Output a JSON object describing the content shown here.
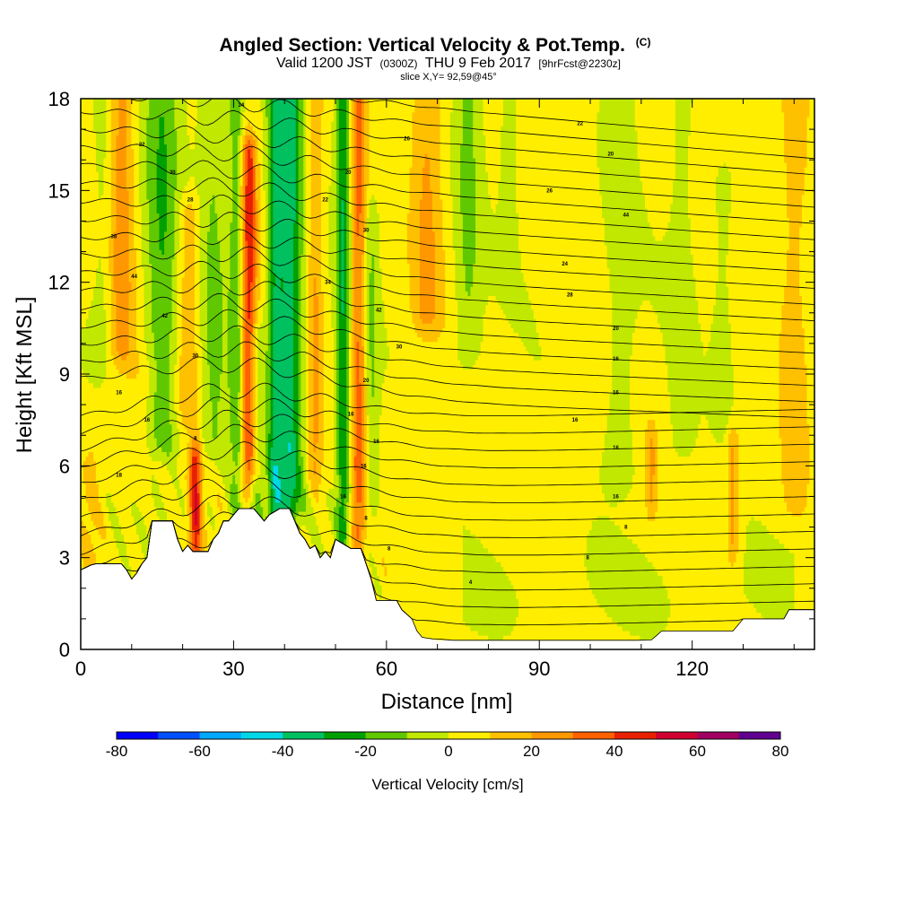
{
  "header": {
    "title": "Angled Section: Vertical Velocity & Pot.Temp.",
    "title_mark": "(C)",
    "valid_prefix": "Valid 1200 JST",
    "valid_utc": "(0300Z)",
    "valid_date": "THU 9 Feb 2017",
    "forecast": "[9hrFcst@2230z]",
    "slice": "slice X,Y= 92,59@45°"
  },
  "chart_data": {
    "type": "heatmap",
    "title": "Angled Section: Vertical Velocity & Pot.Temp.",
    "xlabel": "Distance [nm]",
    "ylabel": "Height [Kft MSL]",
    "xlim": [
      0,
      144
    ],
    "ylim": [
      0,
      18
    ],
    "x_ticks": [
      "0",
      "30",
      "60",
      "90",
      "120"
    ],
    "y_ticks": [
      "0",
      "3",
      "6",
      "9",
      "12",
      "15",
      "18"
    ],
    "colorbar": {
      "label": "Vertical Velocity [cm/s]",
      "range": [
        -80,
        80
      ],
      "tick_labels": [
        "-80",
        "-60",
        "-40",
        "-20",
        "0",
        "20",
        "40",
        "60",
        "80"
      ],
      "colors": [
        "#0000ff",
        "#0050ff",
        "#00a8ff",
        "#00d8e8",
        "#00c060",
        "#00a000",
        "#60c800",
        "#c0e800",
        "#ffee00",
        "#ffc000",
        "#ff9800",
        "#ff6000",
        "#e82000",
        "#d00030",
        "#a00060",
        "#600090"
      ]
    },
    "terrain_profile_kft": [
      [
        0,
        2.6
      ],
      [
        2.5,
        2.8
      ],
      [
        8,
        2.8
      ],
      [
        9,
        2.6
      ],
      [
        10,
        2.3
      ],
      [
        11,
        2.5
      ],
      [
        12,
        2.8
      ],
      [
        13,
        3.0
      ],
      [
        14,
        4.2
      ],
      [
        18,
        4.2
      ],
      [
        19,
        3.6
      ],
      [
        20,
        3.2
      ],
      [
        21,
        3.4
      ],
      [
        22,
        3.2
      ],
      [
        25,
        3.2
      ],
      [
        26,
        3.6
      ],
      [
        27,
        3.8
      ],
      [
        28,
        4.2
      ],
      [
        29,
        4.2
      ],
      [
        31,
        4.6
      ],
      [
        34,
        4.6
      ],
      [
        35,
        4.4
      ],
      [
        36,
        4.2
      ],
      [
        37,
        4.4
      ],
      [
        39,
        4.6
      ],
      [
        41,
        4.6
      ],
      [
        42,
        4.2
      ],
      [
        43,
        3.8
      ],
      [
        44,
        3.6
      ],
      [
        45,
        3.3
      ],
      [
        46,
        3.4
      ],
      [
        47,
        3.0
      ],
      [
        48,
        3.2
      ],
      [
        49,
        3.0
      ],
      [
        50,
        3.6
      ],
      [
        52,
        3.4
      ],
      [
        53,
        3.3
      ],
      [
        55,
        3.3
      ],
      [
        56,
        2.8
      ],
      [
        57,
        2.3
      ],
      [
        58,
        1.6
      ],
      [
        62,
        1.6
      ],
      [
        63,
        1.3
      ],
      [
        65,
        1.0
      ],
      [
        66,
        0.6
      ],
      [
        67,
        0.4
      ],
      [
        70,
        0.3
      ],
      [
        112,
        0.3
      ],
      [
        114,
        0.6
      ],
      [
        128,
        0.6
      ],
      [
        130,
        1.0
      ],
      [
        138,
        1.0
      ],
      [
        139,
        1.3
      ],
      [
        144,
        1.3
      ]
    ],
    "features": [
      {
        "x": 16,
        "w": 3.5,
        "z0": 7,
        "z1": 18,
        "v": -22
      },
      {
        "x": 8,
        "w": 2.5,
        "z0": 10,
        "z1": 18,
        "v": 22
      },
      {
        "x": 4.5,
        "w": 2.2,
        "z0": 10,
        "z1": 18,
        "v": -8
      },
      {
        "x": 21,
        "w": 2.5,
        "z0": 8,
        "z1": 14,
        "v": 18
      },
      {
        "x": 22.5,
        "w": 1.2,
        "z0": 3.5,
        "z1": 6,
        "v": 45
      },
      {
        "x": 26,
        "w": 3,
        "z0": 7,
        "z1": 18,
        "v": -14
      },
      {
        "x": 30.5,
        "w": 1.3,
        "z0": 5,
        "z1": 18,
        "v": -20
      },
      {
        "x": 33,
        "w": 1.5,
        "z0": 6,
        "z1": 16,
        "v": 40
      },
      {
        "x": 34.5,
        "w": 1.3,
        "z0": 4,
        "z1": 10,
        "v": -14
      },
      {
        "x": 38,
        "w": 1.5,
        "z0": 4,
        "z1": 18,
        "v": -28
      },
      {
        "x": 41,
        "w": 2.5,
        "z0": 5,
        "z1": 18,
        "v": -38
      },
      {
        "x": 46,
        "w": 1.5,
        "z0": 6,
        "z1": 18,
        "v": 18
      },
      {
        "x": 51.5,
        "w": 1.4,
        "z0": 4,
        "z1": 18,
        "v": -32
      },
      {
        "x": 54.5,
        "w": 1.6,
        "z0": 4,
        "z1": 18,
        "v": 30
      },
      {
        "x": 57,
        "w": 1.3,
        "z0": 5,
        "z1": 14,
        "v": -14
      },
      {
        "x": 68,
        "w": 3,
        "z0": 11,
        "z1": 18,
        "v": 18
      },
      {
        "x": 76,
        "w": 2.5,
        "z0": 10,
        "z1": 18,
        "v": -14
      },
      {
        "x": 84,
        "w": 1.5,
        "z0": 13,
        "z1": 18,
        "v": -10
      },
      {
        "x": 106,
        "w": 3,
        "z0": 6,
        "z1": 18,
        "v": -8
      },
      {
        "x": 118,
        "w": 2.5,
        "z0": 7,
        "z1": 18,
        "v": -7
      },
      {
        "x": 126,
        "w": 2,
        "z0": 8,
        "z1": 15,
        "v": -8
      },
      {
        "x": 140,
        "w": 3,
        "z0": 5,
        "z1": 18,
        "v": 12
      },
      {
        "x": 128,
        "w": 1.2,
        "z0": 3.5,
        "z1": 6.5,
        "v": 20
      },
      {
        "x": 112,
        "w": 1.2,
        "z0": 5,
        "z1": 6.5,
        "v": 18
      },
      {
        "x": 2,
        "w": 2,
        "z0": 0,
        "z1": 6,
        "v": 10
      },
      {
        "x": 12,
        "w": 3,
        "z0": 6,
        "z1": 9,
        "v": 8
      }
    ],
    "isentropes": {
      "count": 32,
      "labels": [
        {
          "x": 31.5,
          "z": 17.8,
          "text": "34"
        },
        {
          "x": 12,
          "z": 16.5,
          "text": "32"
        },
        {
          "x": 64,
          "z": 16.7,
          "text": "26"
        },
        {
          "x": 98,
          "z": 17.2,
          "text": "22"
        },
        {
          "x": 104,
          "z": 16.2,
          "text": "20"
        },
        {
          "x": 52.5,
          "z": 15.6,
          "text": "20"
        },
        {
          "x": 18,
          "z": 15.6,
          "text": "30"
        },
        {
          "x": 92,
          "z": 15.0,
          "text": "26"
        },
        {
          "x": 21.5,
          "z": 14.7,
          "text": "28"
        },
        {
          "x": 48,
          "z": 14.7,
          "text": "22"
        },
        {
          "x": 107,
          "z": 14.2,
          "text": "44"
        },
        {
          "x": 56,
          "z": 13.7,
          "text": "30"
        },
        {
          "x": 6.5,
          "z": 13.5,
          "text": "38"
        },
        {
          "x": 95,
          "z": 12.6,
          "text": "24"
        },
        {
          "x": 10.5,
          "z": 12.2,
          "text": "44"
        },
        {
          "x": 48.5,
          "z": 12.0,
          "text": "34"
        },
        {
          "x": 96,
          "z": 11.6,
          "text": "28"
        },
        {
          "x": 58.5,
          "z": 11.1,
          "text": "42"
        },
        {
          "x": 16.5,
          "z": 10.9,
          "text": "42"
        },
        {
          "x": 105,
          "z": 10.5,
          "text": "20"
        },
        {
          "x": 62.5,
          "z": 9.9,
          "text": "30"
        },
        {
          "x": 22.5,
          "z": 9.6,
          "text": "30"
        },
        {
          "x": 105,
          "z": 9.5,
          "text": "16"
        },
        {
          "x": 56,
          "z": 8.8,
          "text": "20"
        },
        {
          "x": 105,
          "z": 8.4,
          "text": "16"
        },
        {
          "x": 7.5,
          "z": 8.4,
          "text": "16"
        },
        {
          "x": 53,
          "z": 7.7,
          "text": "16"
        },
        {
          "x": 97,
          "z": 7.5,
          "text": "16"
        },
        {
          "x": 13,
          "z": 7.5,
          "text": "16"
        },
        {
          "x": 22.5,
          "z": 6.9,
          "text": "8"
        },
        {
          "x": 58,
          "z": 6.8,
          "text": "16"
        },
        {
          "x": 105,
          "z": 6.6,
          "text": "16"
        },
        {
          "x": 55.5,
          "z": 6.0,
          "text": "16"
        },
        {
          "x": 7.5,
          "z": 5.7,
          "text": "18"
        },
        {
          "x": 51.5,
          "z": 5.0,
          "text": "16"
        },
        {
          "x": 105,
          "z": 5.0,
          "text": "16"
        },
        {
          "x": 56,
          "z": 4.3,
          "text": "8"
        },
        {
          "x": 107,
          "z": 4.0,
          "text": "8"
        },
        {
          "x": 60.5,
          "z": 3.3,
          "text": "8"
        },
        {
          "x": 99.5,
          "z": 3.0,
          "text": "8"
        },
        {
          "x": 76.5,
          "z": 2.2,
          "text": "4"
        }
      ]
    }
  }
}
